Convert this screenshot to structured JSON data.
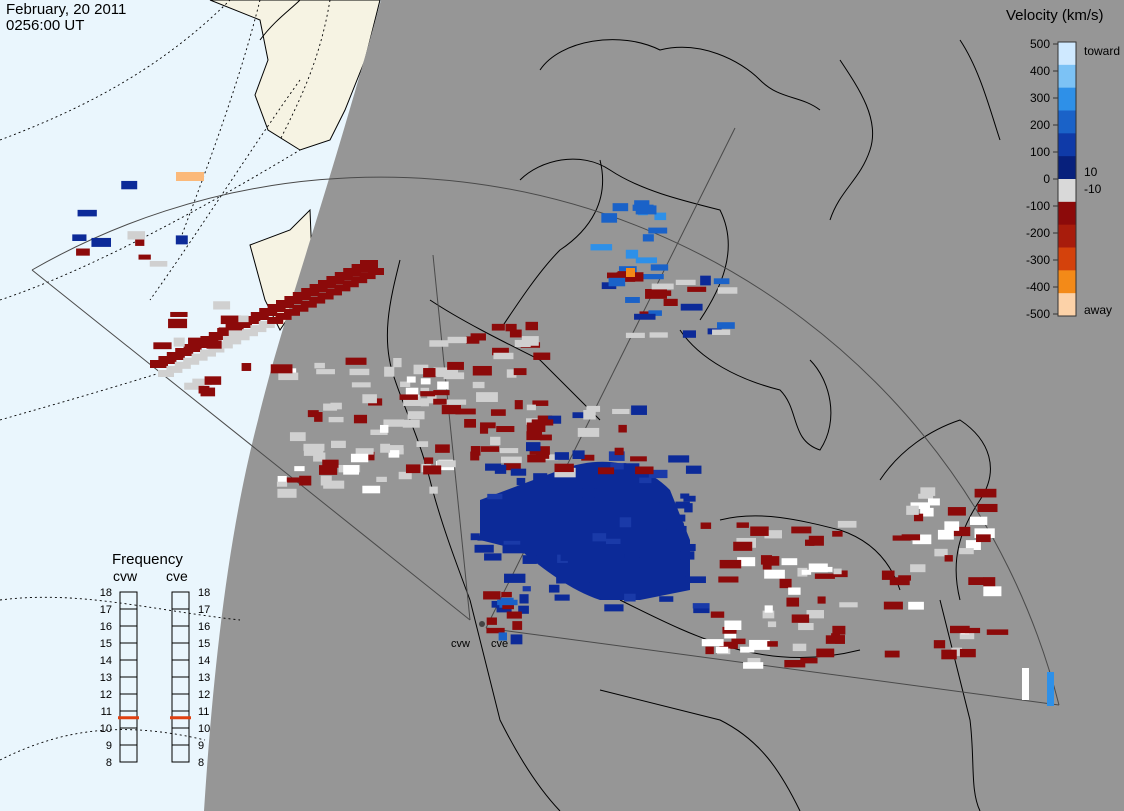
{
  "header": {
    "date": "February, 20 2011",
    "time": "0256:00 UT"
  },
  "colorbar": {
    "title": "Velocity (km/s)",
    "ticks": [
      "500",
      "400",
      "300",
      "200",
      "100",
      "0",
      "-100",
      "-200",
      "-300",
      "-400",
      "-500"
    ],
    "label_toward": "toward",
    "label_away": "away",
    "label_pos": "10",
    "label_neg": "-10",
    "colors": [
      "#cfe9ff",
      "#7cc2f5",
      "#2e90e8",
      "#1a62c8",
      "#0f3aa8",
      "#07207c",
      "#d9d9d9",
      "#8c0a0a",
      "#a81c0c",
      "#d4420c",
      "#f38a18",
      "#fcd2a8"
    ]
  },
  "frequency": {
    "title": "Frequency",
    "radars": [
      "cvw",
      "cve"
    ],
    "levels": [
      "18",
      "17",
      "16",
      "15",
      "14",
      "13",
      "12",
      "11",
      "10",
      "9",
      "8"
    ],
    "marker_mhz": 10.6,
    "marker_color": "#e04010"
  },
  "sites": [
    "cvw",
    "cve"
  ],
  "colors": {
    "night": "#969696",
    "ocean_day": "#eaf6fd",
    "land_day": "#f6f3e3",
    "away_dark": "#8c0a0a",
    "toward_dark": "#0c2a98",
    "ground_scatter": "#d0d0d0"
  }
}
